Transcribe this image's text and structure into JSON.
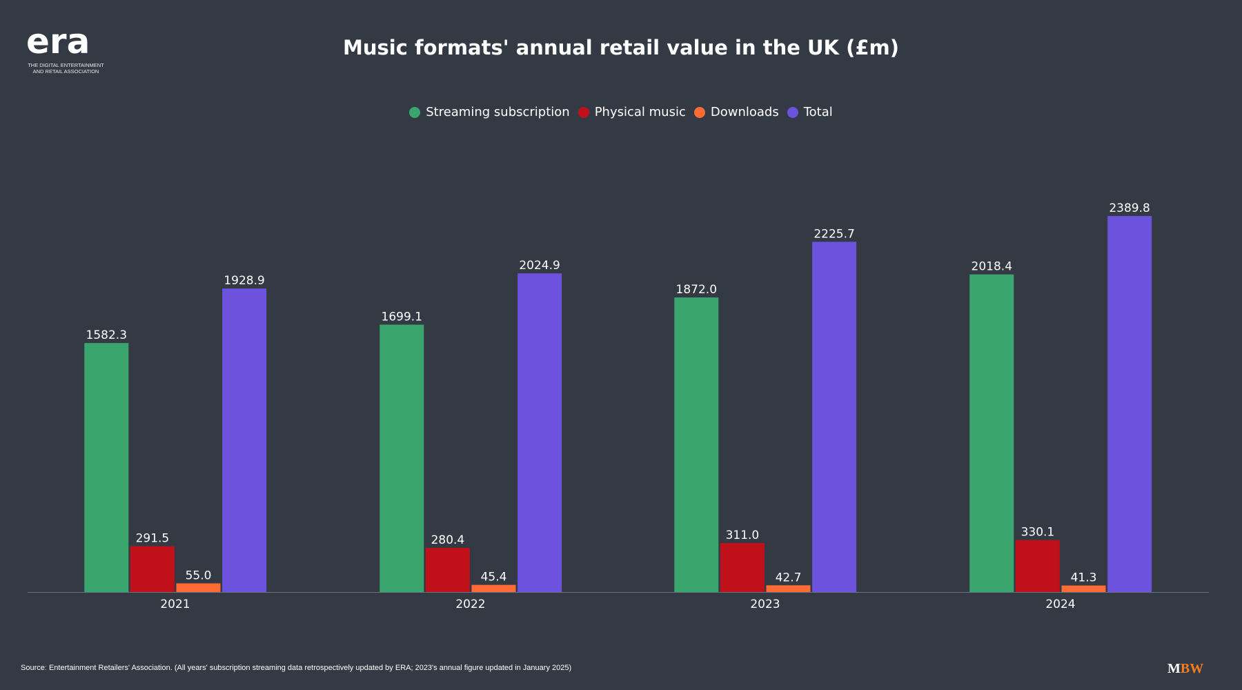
{
  "logo": {
    "mark": "era",
    "subtitle_line1": "THE DIGITAL ENTERTAINMENT",
    "subtitle_line2": "AND RETAIL ASSOCIATION"
  },
  "chart_data": {
    "type": "bar",
    "title": "Music formats' annual retail value in the UK (£m)",
    "categories": [
      "2021",
      "2022",
      "2023",
      "2024"
    ],
    "series": [
      {
        "name": "Streaming subscription",
        "color": "#3aa66e",
        "values": [
          1582.3,
          1699.1,
          1872.0,
          2018.4
        ],
        "labels": [
          "1582.3",
          "1699.1",
          "1872.0",
          "2018.4"
        ]
      },
      {
        "name": "Physical music",
        "color": "#c0111a",
        "values": [
          291.5,
          280.4,
          311.0,
          330.1
        ],
        "labels": [
          "291.5",
          "280.4",
          "311.0",
          "330.1"
        ]
      },
      {
        "name": "Downloads",
        "color": "#ff6b35",
        "values": [
          55.0,
          45.4,
          42.7,
          41.3
        ],
        "labels": [
          "55.0",
          "45.4",
          "42.7",
          "41.3"
        ]
      },
      {
        "name": "Total",
        "color": "#6c52dc",
        "values": [
          1928.9,
          2024.9,
          2225.7,
          2389.8
        ],
        "labels": [
          "1928.9",
          "2024.9",
          "2225.7",
          "2389.8"
        ]
      }
    ],
    "xlabel": "",
    "ylabel": "",
    "ylim": [
      0,
      2389.8
    ],
    "grid": false,
    "legend": "top-center"
  },
  "source": "Source: Entertainment Retailers' Association. (All years' subscription streaming data retrospectively updated by ERA; 2023's annual figure updated in January 2025)",
  "brand": {
    "m": "M",
    "bw": "BW",
    "bw_color": "#f47c20"
  }
}
